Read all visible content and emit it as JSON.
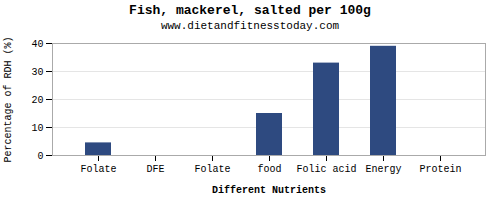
{
  "chart_data": {
    "type": "bar",
    "title": "Fish, mackerel, salted per 100g",
    "subtitle": "www.dietandfitnesstoday.com",
    "xlabel": "Different Nutrients",
    "ylabel": "Percentage of RDH (%)",
    "categories": [
      "Folate",
      "DFE",
      "Folate",
      "food",
      "Folic acid",
      "Energy",
      "Protein"
    ],
    "values": [
      4.5,
      0,
      0,
      15,
      33,
      39,
      0
    ],
    "color": "#2e4a80",
    "ylim": [
      0,
      40
    ],
    "yticks": [
      0,
      10,
      20,
      30,
      40
    ],
    "grid": true
  }
}
